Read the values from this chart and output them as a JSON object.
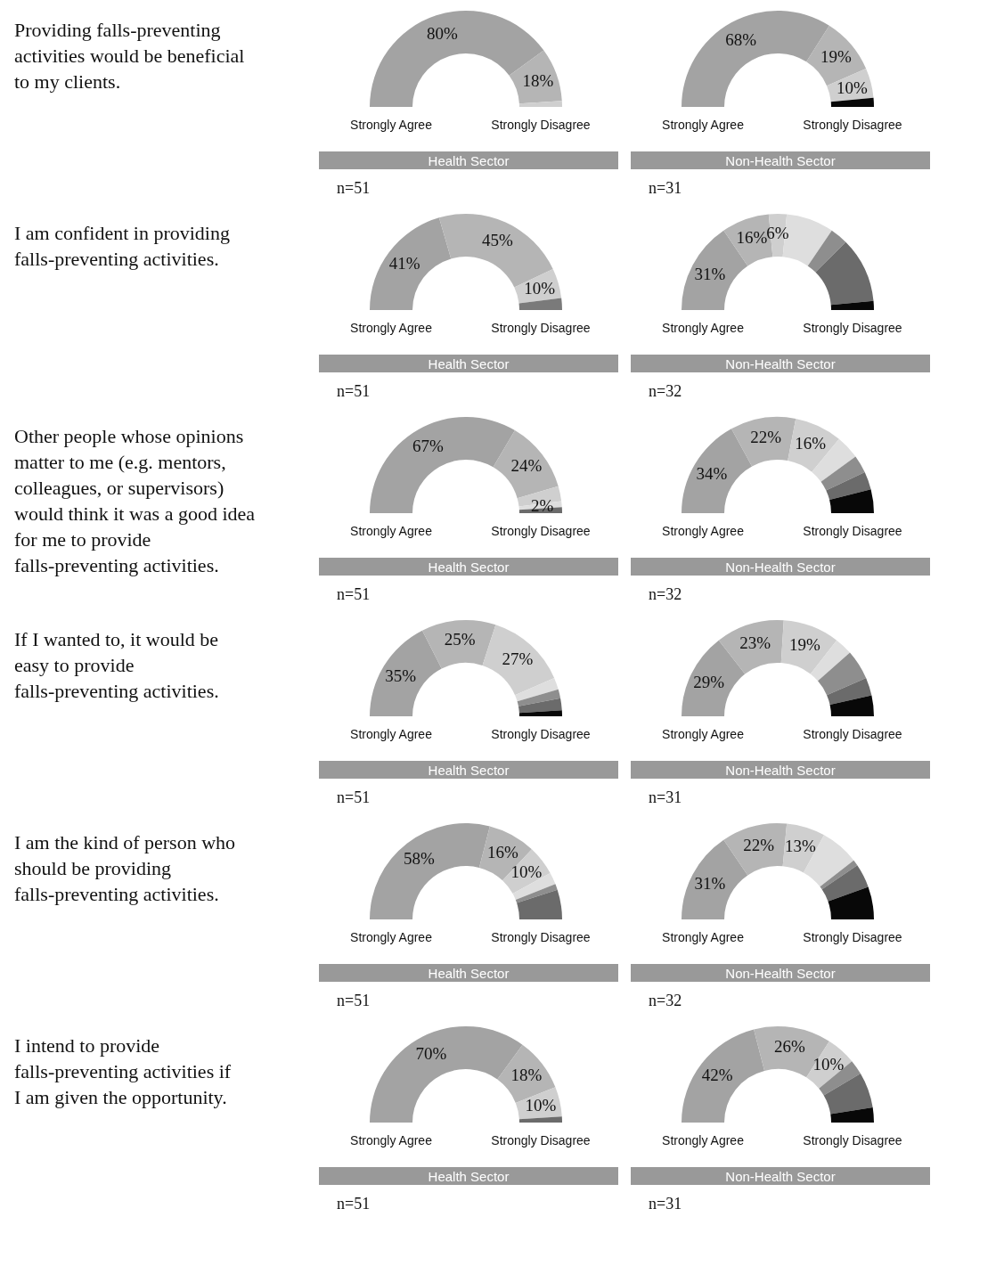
{
  "chart_data": [
    {
      "type": "donut",
      "title": "Providing falls-preventing activities would be beneficial to my clients.",
      "xlabel": "Health Sector",
      "annotations": [
        "Strongly Agree",
        "Strongly Disagree",
        "n=51"
      ],
      "categories": [
        null,
        null,
        null,
        null,
        null,
        null,
        null
      ],
      "values": [
        80,
        18,
        2,
        0,
        0,
        0,
        0
      ],
      "value_labels": [
        "80%",
        "18%",
        null,
        null,
        null,
        null,
        null
      ],
      "colors": [
        "#a3a3a3",
        "#b5b5b5",
        "#cfcfcf",
        "#dedede",
        "#8e8e8e",
        "#6b6b6b",
        "#080808"
      ]
    },
    {
      "type": "donut",
      "xlabel": "Non-Health Sector",
      "annotations": [
        "Strongly Agree",
        "Strongly Disagree",
        "n=31"
      ],
      "categories": [
        null,
        null,
        null,
        null,
        null,
        null,
        null
      ],
      "values": [
        68,
        19,
        10,
        0,
        0,
        0,
        3
      ],
      "value_labels": [
        "68%",
        "19%",
        "10%",
        null,
        null,
        null,
        null
      ],
      "colors": [
        "#a3a3a3",
        "#b5b5b5",
        "#cfcfcf",
        "#dedede",
        "#8e8e8e",
        "#6b6b6b",
        "#080808"
      ]
    },
    {
      "type": "donut",
      "title": "I am confident in providing falls-preventing activities.",
      "xlabel": "Health Sector",
      "annotations": [
        "Strongly Agree",
        "Strongly Disagree",
        "n=51"
      ],
      "categories": [
        null,
        null,
        null,
        null,
        null,
        null,
        null
      ],
      "values": [
        41,
        45,
        10,
        0,
        4,
        0,
        0
      ],
      "value_labels": [
        "41%",
        "45%",
        "10%",
        null,
        null,
        null,
        null
      ],
      "colors": [
        "#a3a3a3",
        "#b5b5b5",
        "#cfcfcf",
        "#dedede",
        "#7a7a7a",
        "#6b6b6b",
        "#080808"
      ]
    },
    {
      "type": "donut",
      "xlabel": "Non-Health Sector",
      "annotations": [
        "Strongly Agree",
        "Strongly Disagree",
        "n=32"
      ],
      "categories": [
        null,
        null,
        null,
        null,
        null,
        null,
        null
      ],
      "values": [
        31,
        16,
        6,
        16,
        6,
        22,
        3
      ],
      "value_labels": [
        "31%",
        "16%",
        "6%",
        null,
        null,
        null,
        null
      ],
      "colors": [
        "#a3a3a3",
        "#b5b5b5",
        "#cfcfcf",
        "#dedede",
        "#8e8e8e",
        "#6b6b6b",
        "#080808"
      ]
    },
    {
      "type": "donut",
      "title": "Other people whose opinions matter to me (e.g. mentors, colleagues, or supervisors) would think it was a good idea for me to provide falls-preventing activities.",
      "xlabel": "Health Sector",
      "annotations": [
        "Strongly Agree",
        "Strongly Disagree",
        "n=51"
      ],
      "categories": [
        null,
        null,
        null,
        null,
        null,
        null,
        null
      ],
      "values": [
        67,
        24,
        5,
        2,
        0,
        2,
        0
      ],
      "value_labels": [
        "67%",
        "24%",
        null,
        "2%",
        null,
        null,
        null
      ],
      "colors": [
        "#a3a3a3",
        "#b5b5b5",
        "#cfcfcf",
        "#dedede",
        "#8e8e8e",
        "#6b6b6b",
        "#080808"
      ]
    },
    {
      "type": "donut",
      "xlabel": "Non-Health Sector",
      "annotations": [
        "Strongly Agree",
        "Strongly Disagree",
        "n=32"
      ],
      "categories": [
        null,
        null,
        null,
        null,
        null,
        null,
        null
      ],
      "values": [
        34,
        22,
        16,
        8,
        6,
        6,
        8
      ],
      "value_labels": [
        "34%",
        "22%",
        "16%",
        null,
        null,
        null,
        null
      ],
      "colors": [
        "#a3a3a3",
        "#b5b5b5",
        "#cfcfcf",
        "#dedede",
        "#8e8e8e",
        "#6b6b6b",
        "#080808"
      ]
    },
    {
      "type": "donut",
      "title": "If I wanted to, it would be easy to provide falls-preventing activities.",
      "xlabel": "Health Sector",
      "annotations": [
        "Strongly Agree",
        "Strongly Disagree",
        "n=51"
      ],
      "categories": [
        null,
        null,
        null,
        null,
        null,
        null,
        null
      ],
      "values": [
        35,
        25,
        27,
        4,
        3,
        4,
        2
      ],
      "value_labels": [
        "35%",
        "25%",
        "27%",
        null,
        null,
        null,
        null
      ],
      "colors": [
        "#a3a3a3",
        "#b5b5b5",
        "#cfcfcf",
        "#dedede",
        "#8e8e8e",
        "#6b6b6b",
        "#080808"
      ]
    },
    {
      "type": "donut",
      "xlabel": "Non-Health Sector",
      "annotations": [
        "Strongly Agree",
        "Strongly Disagree",
        "n=31"
      ],
      "categories": [
        null,
        null,
        null,
        null,
        null,
        null,
        null
      ],
      "values": [
        29,
        23,
        19,
        6,
        10,
        6,
        7
      ],
      "value_labels": [
        "29%",
        "23%",
        "19%",
        null,
        null,
        null,
        null
      ],
      "colors": [
        "#a3a3a3",
        "#b5b5b5",
        "#cfcfcf",
        "#dedede",
        "#8e8e8e",
        "#6b6b6b",
        "#080808"
      ]
    },
    {
      "type": "donut",
      "title": "I am the kind of person who should be providing falls-preventing activities.",
      "xlabel": "Health Sector",
      "annotations": [
        "Strongly Agree",
        "Strongly Disagree",
        "n=51"
      ],
      "categories": [
        null,
        null,
        null,
        null,
        null,
        null,
        null
      ],
      "values": [
        58,
        16,
        10,
        4,
        2,
        10,
        0
      ],
      "value_labels": [
        "58%",
        "16%",
        "10%",
        null,
        null,
        null,
        null
      ],
      "colors": [
        "#a3a3a3",
        "#b5b5b5",
        "#cfcfcf",
        "#dedede",
        "#8e8e8e",
        "#6b6b6b",
        "#080808"
      ]
    },
    {
      "type": "donut",
      "xlabel": "Non-Health Sector",
      "annotations": [
        "Strongly Agree",
        "Strongly Disagree",
        "n=32"
      ],
      "categories": [
        null,
        null,
        null,
        null,
        null,
        null,
        null
      ],
      "values": [
        31,
        22,
        13,
        13,
        2,
        8,
        11
      ],
      "value_labels": [
        "31%",
        "22%",
        "13%",
        null,
        null,
        null,
        null
      ],
      "colors": [
        "#a3a3a3",
        "#b5b5b5",
        "#cfcfcf",
        "#dedede",
        "#8e8e8e",
        "#6b6b6b",
        "#080808"
      ]
    },
    {
      "type": "donut",
      "title": "I intend to provide falls-preventing activities if I am given the opportunity.",
      "xlabel": "Health Sector",
      "annotations": [
        "Strongly Agree",
        "Strongly Disagree",
        "n=51"
      ],
      "categories": [
        null,
        null,
        null,
        null,
        null,
        null,
        null
      ],
      "values": [
        70,
        18,
        10,
        0,
        0,
        2,
        0
      ],
      "value_labels": [
        "70%",
        "18%",
        "10%",
        null,
        null,
        null,
        null
      ],
      "colors": [
        "#a3a3a3",
        "#b5b5b5",
        "#cfcfcf",
        "#dedede",
        "#8e8e8e",
        "#6b6b6b",
        "#080808"
      ]
    },
    {
      "type": "donut",
      "xlabel": "Non-Health Sector",
      "annotations": [
        "Strongly Agree",
        "Strongly Disagree",
        "n=31"
      ],
      "categories": [
        null,
        null,
        null,
        null,
        null,
        null,
        null
      ],
      "values": [
        42,
        26,
        10,
        0,
        5,
        12,
        5
      ],
      "value_labels": [
        "42%",
        "26%",
        "10%",
        null,
        null,
        null,
        null
      ],
      "colors": [
        "#a3a3a3",
        "#b5b5b5",
        "#cfcfcf",
        "#dedede",
        "#8e8e8e",
        "#6b6b6b",
        "#080808"
      ]
    }
  ]
}
